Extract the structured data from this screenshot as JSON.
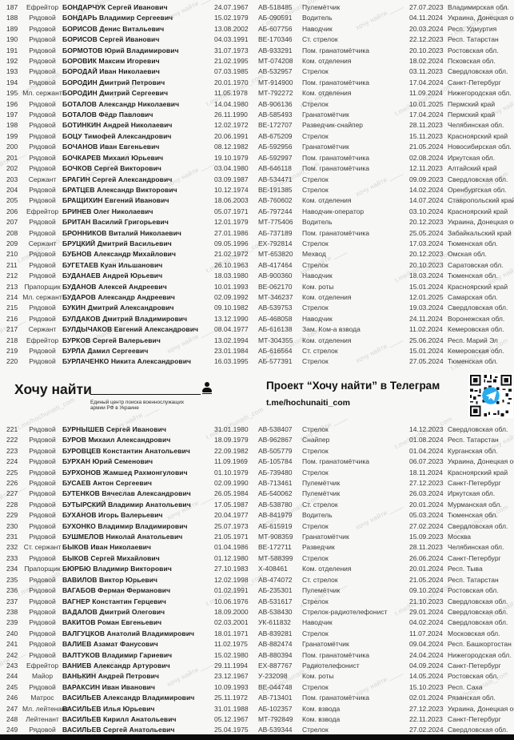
{
  "header": {
    "logo_title": "Хочу найти",
    "logo_subtitle_line1": "Единый центр поиска военнослужащих",
    "logo_subtitle_line2": "армии РФ в Украине",
    "project_title": "Проект “Хочу найти” в Телеграм",
    "project_link": "t.me/hochunaiti_com"
  },
  "watermark": {
    "line1": "хочу найти",
    "line2": "t.me/hochunaiti_com"
  },
  "rows_top": [
    {
      "n": "187",
      "rank": "Ефрейтор",
      "name": "БОНДАРЧУК Сергей Иванович",
      "dob": "24.07.1967",
      "id": "АВ-518485",
      "pos": "Пулемётчик",
      "date": "27.07.2023",
      "reg": "Владимирская обл."
    },
    {
      "n": "188",
      "rank": "Рядовой",
      "name": "БОНДАРЬ Владимир Сергеевич",
      "dob": "15.02.1979",
      "id": "АБ-090591",
      "pos": "Водитель",
      "date": "04.11.2024",
      "reg": "Украина, Донецкая обл."
    },
    {
      "n": "189",
      "rank": "Рядовой",
      "name": "БОРИСОВ Денис Витальевич",
      "dob": "13.08.2002",
      "id": "АБ-607756",
      "pos": "Наводчик",
      "date": "20.03.2024",
      "reg": "Респ. Удмуртия"
    },
    {
      "n": "190",
      "rank": "Рядовой",
      "name": "БОРИСОВ Сергей Иванович",
      "dob": "04.03.1991",
      "id": "ВЕ-170346",
      "pos": "Ст. стрелок",
      "date": "22.12.2023",
      "reg": "Респ. Татарстан"
    },
    {
      "n": "191",
      "rank": "Рядовой",
      "name": "БОРМОТОВ Юрий Владимирович",
      "dob": "31.07.1973",
      "id": "АВ-933291",
      "pos": "Пом. гранатомётчика",
      "date": "20.10.2023",
      "reg": "Ростовская обл."
    },
    {
      "n": "192",
      "rank": "Рядовой",
      "name": "БОРОВИК Максим Игоревич",
      "dob": "21.02.1995",
      "id": "МТ-074208",
      "pos": "Ком. отделения",
      "date": "18.02.2024",
      "reg": "Псковская обл."
    },
    {
      "n": "193",
      "rank": "Рядовой",
      "name": "БОРОДАЙ Иван Николаевич",
      "dob": "07.03.1985",
      "id": "АВ-532957",
      "pos": "Стрелок",
      "date": "03.11.2023",
      "reg": "Свердловская обл."
    },
    {
      "n": "194",
      "rank": "Рядовой",
      "name": "БОРОДИН Дмитрий Петрович",
      "dob": "20.01.1970",
      "id": "МТ-914900",
      "pos": "Пом. гранатомётчика",
      "date": "17.04.2024",
      "reg": "Санкт-Петербург"
    },
    {
      "n": "195",
      "rank": "Мл. сержант",
      "name": "БОРОДИН Дмитрий Сергеевич",
      "dob": "11.05.1978",
      "id": "МТ-792272",
      "pos": "Ком. отделения",
      "date": "11.09.2024",
      "reg": "Нижегородская обл."
    },
    {
      "n": "196",
      "rank": "Рядовой",
      "name": "БОТАЛОВ Александр Николаевич",
      "dob": "14.04.1980",
      "id": "АВ-906136",
      "pos": "Стрелок",
      "date": "10.01.2025",
      "reg": "Пермский край"
    },
    {
      "n": "197",
      "rank": "Рядовой",
      "name": "БОТАЛОВ Фёдр Павлович",
      "dob": "26.11.1990",
      "id": "АВ-585493",
      "pos": "Гранатомётчик",
      "date": "17.04.2024",
      "reg": "Пермский край"
    },
    {
      "n": "198",
      "rank": "Рядовой",
      "name": "БОТИНКИН Андрей Николаевич",
      "dob": "12.02.1972",
      "id": "ВЕ-172707",
      "pos": "Разведчик-снайпер",
      "date": "28.11.2023",
      "reg": "Челябинская обл."
    },
    {
      "n": "199",
      "rank": "Рядовой",
      "name": "БОЦУ Тимофей Александрович",
      "dob": "20.06.1991",
      "id": "АВ-675209",
      "pos": "Стрелок",
      "date": "15.11.2023",
      "reg": "Красноярский край"
    },
    {
      "n": "200",
      "rank": "Рядовой",
      "name": "БОЧАНОВ Иван Евгеньевич",
      "dob": "08.12.1982",
      "id": "АБ-592956",
      "pos": "Гранатомётчик",
      "date": "21.05.2024",
      "reg": "Новосибирская обл."
    },
    {
      "n": "201",
      "rank": "Рядовой",
      "name": "БОЧКАРЕВ Михаил Юрьевич",
      "dob": "19.10.1979",
      "id": "АБ-592997",
      "pos": "Пом. гранатомётчика",
      "date": "02.08.2024",
      "reg": "Иркутская обл."
    },
    {
      "n": "202",
      "rank": "Рядовой",
      "name": "БОЧКОВ Сергей Викторович",
      "dob": "03.04.1980",
      "id": "АВ-646118",
      "pos": "Пом. гранатомётчика",
      "date": "12.11.2023",
      "reg": "Алтайский край"
    },
    {
      "n": "203",
      "rank": "Сержант",
      "name": "БРАГИН Сергей Александрович",
      "dob": "03.09.1987",
      "id": "АВ-534471",
      "pos": "Стрелок",
      "date": "09.09.2023",
      "reg": "Свердловская обл."
    },
    {
      "n": "204",
      "rank": "Рядовой",
      "name": "БРАТЦЕВ Александр Викторович",
      "dob": "10.12.1974",
      "id": "ВЕ-191385",
      "pos": "Стрелок",
      "date": "14.02.2024",
      "reg": "Оренбургская обл."
    },
    {
      "n": "205",
      "rank": "Рядовой",
      "name": "БРАЩИХИН Евгений Иванович",
      "dob": "18.06.2003",
      "id": "АВ-760602",
      "pos": "Ком. отделения",
      "date": "14.07.2024",
      "reg": "Ставропольский край"
    },
    {
      "n": "206",
      "rank": "Ефрейтор",
      "name": "БРИНЕВ Олег Николаевич",
      "dob": "05.07.1971",
      "id": "АБ-797244",
      "pos": "Наводчик-оператор",
      "date": "03.10.2024",
      "reg": "Красноярский край"
    },
    {
      "n": "207",
      "rank": "Рядовой",
      "name": "БРИТАН Василий Григорьевич",
      "dob": "12.01.1979",
      "id": "МТ-775406",
      "pos": "Водитель",
      "date": "20.12.2023",
      "reg": "Украина, Донецкая обл."
    },
    {
      "n": "208",
      "rank": "Рядовой",
      "name": "БРОННИКОВ Виталий Николаевич",
      "dob": "27.01.1986",
      "id": "АБ-737189",
      "pos": "Пом. гранатомётчика",
      "date": "25.05.2024",
      "reg": "Забайкальский край"
    },
    {
      "n": "209",
      "rank": "Сержант",
      "name": "БРУЦКИЙ Дмитрий Васильевич",
      "dob": "09.05.1996",
      "id": "ЕХ-792814",
      "pos": "Стрелок",
      "date": "17.03.2024",
      "reg": "Тюменская обл."
    },
    {
      "n": "210",
      "rank": "Рядовой",
      "name": "БУБНОВ Александр Михайлович",
      "dob": "21.02.1972",
      "id": "МТ-653820",
      "pos": "Мехвод",
      "date": "20.12.2023",
      "reg": "Омская обл."
    },
    {
      "n": "211",
      "rank": "Рядовой",
      "name": "БУГЕТАЕВ Куан Ильшанович",
      "dob": "26.10.1963",
      "id": "АВ-417464",
      "pos": "Стрелок",
      "date": "20.10.2023",
      "reg": "Саратовская обл."
    },
    {
      "n": "212",
      "rank": "Рядовой",
      "name": "БУДАНАЕВ Андрей Юрьевич",
      "dob": "18.03.1980",
      "id": "АВ-900360",
      "pos": "Наводчик",
      "date": "18.03.2024",
      "reg": "Тюменская обл."
    },
    {
      "n": "213",
      "rank": "Прапорщик",
      "name": "БУДАНОВ Алексей Андреевич",
      "dob": "10.01.1993",
      "id": "ВЕ-062170",
      "pos": "Ком. роты",
      "date": "15.01.2024",
      "reg": "Красноярский край"
    },
    {
      "n": "214",
      "rank": "Мл. сержант",
      "name": "БУДАРОВ Александр Андреевич",
      "dob": "02.09.1992",
      "id": "МТ-346237",
      "pos": "Ком. отделения",
      "date": "12.01.2025",
      "reg": "Самарская обл."
    },
    {
      "n": "215",
      "rank": "Рядовой",
      "name": "БУКИН Дмитрий Александрович",
      "dob": "09.10.1982",
      "id": "АВ-539753",
      "pos": "Стрелок",
      "date": "19.03.2024",
      "reg": "Свердловская обл."
    },
    {
      "n": "216",
      "rank": "Рядовой",
      "name": "БУЛДАКОВ Дмитрий Владимирович",
      "dob": "13.12.1990",
      "id": "АБ-468058",
      "pos": "Наводчик",
      "date": "24.11.2024",
      "reg": "Воронежская обл."
    },
    {
      "n": "217",
      "rank": "Сержант",
      "name": "БУЛДЫЧАКОВ Евгений Александрович",
      "dob": "08.04.1977",
      "id": "АБ-616138",
      "pos": "Зам. Ком-а взвода",
      "date": "11.02.2024",
      "reg": "Кемеровская обл."
    },
    {
      "n": "218",
      "rank": "Ефрейтор",
      "name": "БУРКОВ Сергей Валерьевич",
      "dob": "13.02.1994",
      "id": "МТ-304355",
      "pos": "Ком. отделения",
      "date": "25.06.2024",
      "reg": "Респ. Марий Эл"
    },
    {
      "n": "219",
      "rank": "Рядовой",
      "name": "БУРЛА Дамил Сергеевич",
      "dob": "23.01.1984",
      "id": "АБ-616564",
      "pos": "Ст. стрелок",
      "date": "15.01.2024",
      "reg": "Кемеровская обл."
    },
    {
      "n": "220",
      "rank": "Рядовой",
      "name": "БУРЛАЧЕНКО Никита Александрович",
      "dob": "16.03.1995",
      "id": "АБ-577391",
      "pos": "Стрелок",
      "date": "27.05.2024",
      "reg": "Тюменская обл."
    }
  ],
  "rows_bottom": [
    {
      "n": "221",
      "rank": "Рядовой",
      "name": "БУРНЫШЕВ Сергей Иванович",
      "dob": "31.01.1980",
      "id": "АВ-538407",
      "pos": "Стрелок",
      "date": "14.12.2023",
      "reg": "Свердловская обл."
    },
    {
      "n": "222",
      "rank": "Рядовой",
      "name": "БУРОВ Михаил Александрович",
      "dob": "18.09.1979",
      "id": "АВ-962867",
      "pos": "Снайпер",
      "date": "01.08.2024",
      "reg": "Респ. Татарстан"
    },
    {
      "n": "223",
      "rank": "Рядовой",
      "name": "БУРОВЦЕВ Константин Анатольевич",
      "dob": "22.09.1982",
      "id": "АВ-505779",
      "pos": "Стрелок",
      "date": "01.04.2024",
      "reg": "Курганская обл."
    },
    {
      "n": "224",
      "rank": "Рядовой",
      "name": "БУРХАН Юрий Семенович",
      "dob": "11.09.1969",
      "id": "АБ-105784",
      "pos": "Пом. гранатомётчика",
      "date": "06.07.2023",
      "reg": "Украина, Донецкая обл."
    },
    {
      "n": "225",
      "rank": "Рядовой",
      "name": "БУРХОНОВ Жамшед Рахмонгулович",
      "dob": "01.10.1979",
      "id": "АБ-739480",
      "pos": "Стрелок",
      "date": "18.11.2024",
      "reg": "Красноярский край"
    },
    {
      "n": "226",
      "rank": "Рядовой",
      "name": "БУСАЕВ Антон Сергеевич",
      "dob": "02.09.1990",
      "id": "АВ-713461",
      "pos": "Пулемётчик",
      "date": "27.12.2023",
      "reg": "Санкт-Петербург"
    },
    {
      "n": "227",
      "rank": "Рядовой",
      "name": "БУТЕНКОВ Вячеслав Александрович",
      "dob": "26.05.1984",
      "id": "АБ-540062",
      "pos": "Пулемётчик",
      "date": "26.03.2024",
      "reg": "Иркутская обл."
    },
    {
      "n": "228",
      "rank": "Рядовой",
      "name": "БУТЫРСКИЙ Владимир Анатольевич",
      "dob": "17.05.1987",
      "id": "АВ-538780",
      "pos": "Ст. стрелок",
      "date": "20.01.2024",
      "reg": "Мурманская обл."
    },
    {
      "n": "229",
      "rank": "Рядовой",
      "name": "БУХАНОВ Игорь Валерьевич",
      "dob": "20.04.1977",
      "id": "АВ-841979",
      "pos": "Водитель",
      "date": "05.03.2024",
      "reg": "Тюменская обл."
    },
    {
      "n": "230",
      "rank": "Рядовой",
      "name": "БУХОНКО Владимир Владимирович",
      "dob": "25.07.1973",
      "id": "АБ-615919",
      "pos": "Стрелок",
      "date": "27.02.2024",
      "reg": "Свердловская обл."
    },
    {
      "n": "231",
      "rank": "Рядовой",
      "name": "БУШМЕЛОВ Николай Анатольевич",
      "dob": "21.05.1971",
      "id": "МТ-908359",
      "pos": "Гранатомётчик",
      "date": "15.09.2023",
      "reg": "Москва"
    },
    {
      "n": "232",
      "rank": "Ст. сержант",
      "name": "БЫКОВ Иван Николаевич",
      "dob": "01.04.1986",
      "id": "ВЕ-172711",
      "pos": "Разведчик",
      "date": "28.11.2023",
      "reg": "Челябинская обл."
    },
    {
      "n": "233",
      "rank": "Рядовой",
      "name": "БЫКОВ Сергей Михайлович",
      "dob": "01.12.1980",
      "id": "МТ-588399",
      "pos": "Стрелок",
      "date": "26.06.2024",
      "reg": "Санкт-Петербург"
    },
    {
      "n": "234",
      "rank": "Прапорщик",
      "name": "БЮРБЮ Владимир Викторович",
      "dob": "27.10.1983",
      "id": "Х-408461",
      "pos": "Ком. отделения",
      "date": "20.01.2024",
      "reg": "Респ. Тыва"
    },
    {
      "n": "235",
      "rank": "Рядовой",
      "name": "ВАВИЛОВ Виктор Юрьевич",
      "dob": "12.02.1998",
      "id": "АВ-474072",
      "pos": "Ст. стрелок",
      "date": "21.05.2024",
      "reg": "Респ. Татарстан"
    },
    {
      "n": "236",
      "rank": "Рядовой",
      "name": "ВАГАБОВ Ферман Ферманович",
      "dob": "01.02.1991",
      "id": "АБ-235301",
      "pos": "Пулемётчик",
      "date": "09.10.2024",
      "reg": "Ростовская обл."
    },
    {
      "n": "237",
      "rank": "Рядовой",
      "name": "ВАГНЕР Константин Герцевич",
      "dob": "10.06.1976",
      "id": "АВ-531617",
      "pos": "Стрелок",
      "date": "21.10.2023",
      "reg": "Свердловская обл."
    },
    {
      "n": "238",
      "rank": "Рядовой",
      "name": "ВАДАЛОВ Дмитрий Олегович",
      "dob": "18.09.2000",
      "id": "АВ-538430",
      "pos": "Стрелок-радиотелефонист",
      "date": "29.01.2024",
      "reg": "Свердловская обл."
    },
    {
      "n": "239",
      "rank": "Рядовой",
      "name": "ВАКИТОВ Роман Евгеньевич",
      "dob": "02.03.2001",
      "id": "УК-611832",
      "pos": "Наводчик",
      "date": "04.02.2024",
      "reg": "Свердловская обл."
    },
    {
      "n": "240",
      "rank": "Рядовой",
      "name": "ВАЛГУЦКОВ Анатолий Владимирович",
      "dob": "18.01.1971",
      "id": "АВ-839281",
      "pos": "Стрелок",
      "date": "11.07.2024",
      "reg": "Московская обл."
    },
    {
      "n": "241",
      "rank": "Рядовой",
      "name": "ВАЛИЕВ Азамат Фанусович",
      "dob": "11.02.1975",
      "id": "АВ-882474",
      "pos": "Гранатомётчик",
      "date": "09.04.2024",
      "reg": "Респ. Башкортостан"
    },
    {
      "n": "242",
      "rank": "Рядовой",
      "name": "ВАЛТУКОВ Владимир Гариевич",
      "dob": "15.02.1980",
      "id": "АВ-880394",
      "pos": "Пом. гранатомётчика",
      "date": "24.04.2024",
      "reg": "Нижегородская обл."
    },
    {
      "n": "243",
      "rank": "Ефрейтор",
      "name": "ВАНИЕВ Александр Артурович",
      "dob": "29.11.1994",
      "id": "ЕХ-887767",
      "pos": "Радиотелефонист",
      "date": "04.09.2024",
      "reg": "Санкт-Петербург"
    },
    {
      "n": "244",
      "rank": "Майор",
      "name": "ВАНЬКИН Андрей Петрович",
      "dob": "23.12.1967",
      "id": "У-232098",
      "pos": "Ком. роты",
      "date": "14.05.2024",
      "reg": "Ростовская обл."
    },
    {
      "n": "245",
      "rank": "Рядовой",
      "name": "ВАРАКСИН Иван Иванович",
      "dob": "10.09.1993",
      "id": "ВЕ-044748",
      "pos": "Стрелок",
      "date": "15.10.2023",
      "reg": "Респ. Саха"
    },
    {
      "n": "246",
      "rank": "Матрос",
      "name": "ВАСИЛЬЕВ Александр Владимирович",
      "dob": "25.11.1972",
      "id": "АВ-713401",
      "pos": "Пом. гранатомётчика",
      "date": "02.01.2024",
      "reg": "Рязанская обл."
    },
    {
      "n": "247",
      "rank": "Мл. лейтенант",
      "name": "ВАСИЛЬЕВ Илья Юрьевич",
      "dob": "31.01.1988",
      "id": "АБ-102357",
      "pos": "Ком. взвода",
      "date": "27.12.2023",
      "reg": "Украина, Донецкая обл."
    },
    {
      "n": "248",
      "rank": "Лейтенант",
      "name": "ВАСИЛЬЕВ Кирилл Анатольевич",
      "dob": "05.12.1967",
      "id": "МТ-792849",
      "pos": "Ком. взвода",
      "date": "22.11.2023",
      "reg": "Санкт-Петербург"
    },
    {
      "n": "249",
      "rank": "Рядовой",
      "name": "ВАСИЛЬЕВ Сергей Анатольевич",
      "dob": "25.04.1975",
      "id": "АВ-539344",
      "pos": "Стрелок",
      "date": "27.02.2024",
      "reg": "Свердловская обл."
    }
  ]
}
